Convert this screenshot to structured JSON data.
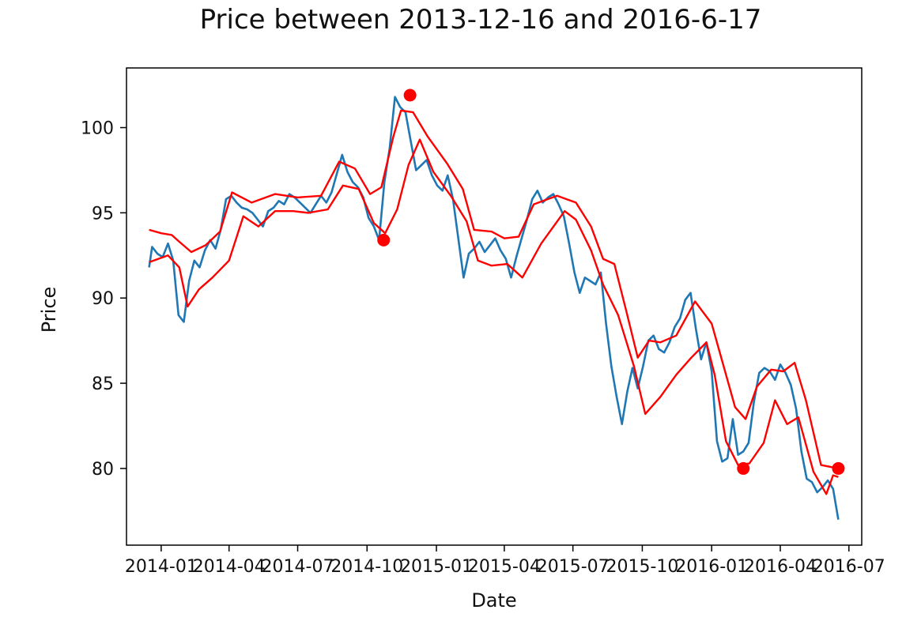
{
  "chart_data": {
    "type": "line",
    "title": "Price between 2013-12-16 and 2016-6-17",
    "xlabel": "Date",
    "ylabel": "Price",
    "xlim": [
      "2013-11-16",
      "2016-07-18"
    ],
    "ylim": [
      75.5,
      103.5
    ],
    "grid": false,
    "x_ticks": [
      "2014-01",
      "2014-04",
      "2014-07",
      "2014-10",
      "2015-01",
      "2015-04",
      "2015-07",
      "2015-10",
      "2016-01",
      "2016-04",
      "2016-07"
    ],
    "y_ticks": [
      80,
      85,
      90,
      95,
      100
    ],
    "colors": {
      "price": "#1f77b4",
      "bands": "#ff0000",
      "markers": "#ff0000"
    },
    "series": [
      {
        "key": "price",
        "x": [
          "2013-12-16",
          "2013-12-20",
          "2013-12-27",
          "2014-01-03",
          "2014-01-10",
          "2014-01-17",
          "2014-01-24",
          "2014-01-31",
          "2014-02-07",
          "2014-02-14",
          "2014-02-21",
          "2014-02-28",
          "2014-03-07",
          "2014-03-14",
          "2014-03-21",
          "2014-03-28",
          "2014-04-04",
          "2014-04-11",
          "2014-04-18",
          "2014-04-25",
          "2014-05-02",
          "2014-05-09",
          "2014-05-16",
          "2014-05-23",
          "2014-05-30",
          "2014-06-06",
          "2014-06-13",
          "2014-06-20",
          "2014-06-27",
          "2014-07-04",
          "2014-07-11",
          "2014-07-18",
          "2014-07-25",
          "2014-08-01",
          "2014-08-08",
          "2014-08-15",
          "2014-08-22",
          "2014-08-29",
          "2014-09-05",
          "2014-09-12",
          "2014-09-19",
          "2014-09-26",
          "2014-10-03",
          "2014-10-10",
          "2014-10-17",
          "2014-10-24",
          "2014-10-31",
          "2014-11-07",
          "2014-11-14",
          "2014-11-21",
          "2014-11-28",
          "2014-12-05",
          "2014-12-12",
          "2014-12-19",
          "2014-12-26",
          "2015-01-02",
          "2015-01-09",
          "2015-01-16",
          "2015-01-23",
          "2015-01-30",
          "2015-02-06",
          "2015-02-13",
          "2015-02-20",
          "2015-02-27",
          "2015-03-06",
          "2015-03-13",
          "2015-03-20",
          "2015-03-27",
          "2015-04-03",
          "2015-04-10",
          "2015-04-17",
          "2015-04-24",
          "2015-05-01",
          "2015-05-08",
          "2015-05-15",
          "2015-05-22",
          "2015-05-29",
          "2015-06-05",
          "2015-06-12",
          "2015-06-19",
          "2015-06-26",
          "2015-07-03",
          "2015-07-10",
          "2015-07-17",
          "2015-07-24",
          "2015-07-31",
          "2015-08-07",
          "2015-08-14",
          "2015-08-21",
          "2015-08-28",
          "2015-09-04",
          "2015-09-11",
          "2015-09-18",
          "2015-09-25",
          "2015-10-02",
          "2015-10-09",
          "2015-10-16",
          "2015-10-23",
          "2015-10-30",
          "2015-11-06",
          "2015-11-13",
          "2015-11-20",
          "2015-11-27",
          "2015-12-04",
          "2015-12-11",
          "2015-12-18",
          "2015-12-25",
          "2016-01-01",
          "2016-01-08",
          "2016-01-15",
          "2016-01-22",
          "2016-01-29",
          "2016-02-05",
          "2016-02-12",
          "2016-02-19",
          "2016-02-26",
          "2016-03-04",
          "2016-03-11",
          "2016-03-18",
          "2016-03-25",
          "2016-04-01",
          "2016-04-08",
          "2016-04-15",
          "2016-04-22",
          "2016-04-29",
          "2016-05-06",
          "2016-05-13",
          "2016-05-20",
          "2016-05-27",
          "2016-06-03",
          "2016-06-10",
          "2016-06-17"
        ],
        "y": [
          91.8,
          93.0,
          92.6,
          92.4,
          93.2,
          92.2,
          89.0,
          88.6,
          91.0,
          92.2,
          91.8,
          92.8,
          93.4,
          92.9,
          94.0,
          95.8,
          96.0,
          95.6,
          95.3,
          95.2,
          95.0,
          94.6,
          94.2,
          95.1,
          95.3,
          95.7,
          95.5,
          96.1,
          95.9,
          95.6,
          95.3,
          95.0,
          95.5,
          96.0,
          95.6,
          96.2,
          97.3,
          98.4,
          97.4,
          96.8,
          96.5,
          95.9,
          94.7,
          94.2,
          93.4,
          96.8,
          98.8,
          101.8,
          101.2,
          100.9,
          99.2,
          97.5,
          97.8,
          98.1,
          97.2,
          96.6,
          96.3,
          97.2,
          95.8,
          93.5,
          91.2,
          92.6,
          92.9,
          93.3,
          92.7,
          93.1,
          93.5,
          92.8,
          92.3,
          91.2,
          92.4,
          93.5,
          94.6,
          95.8,
          96.3,
          95.6,
          95.9,
          96.1,
          95.5,
          94.8,
          93.2,
          91.5,
          90.3,
          91.2,
          91.0,
          90.8,
          91.5,
          88.5,
          86.0,
          84.2,
          82.6,
          84.5,
          85.9,
          84.7,
          86.0,
          87.5,
          87.8,
          87.0,
          86.8,
          87.4,
          88.3,
          88.8,
          89.9,
          90.3,
          88.2,
          86.4,
          87.4,
          85.7,
          81.6,
          80.4,
          80.6,
          82.9,
          80.8,
          81.0,
          81.5,
          83.9,
          85.6,
          85.9,
          85.7,
          85.2,
          86.1,
          85.6,
          84.9,
          83.5,
          81.0,
          79.4,
          79.2,
          78.6,
          78.9,
          79.3,
          78.8,
          77.0
        ]
      },
      {
        "key": "upper-band",
        "x": [
          "2013-12-16",
          "2014-01-01",
          "2014-01-15",
          "2014-01-25",
          "2014-02-10",
          "2014-03-01",
          "2014-03-20",
          "2014-04-05",
          "2014-05-01",
          "2014-06-01",
          "2014-07-01",
          "2014-08-01",
          "2014-08-25",
          "2014-09-15",
          "2014-10-05",
          "2014-10-20",
          "2014-11-05",
          "2014-11-15",
          "2014-12-01",
          "2014-12-20",
          "2015-01-15",
          "2015-02-05",
          "2015-02-20",
          "2015-03-15",
          "2015-04-01",
          "2015-04-20",
          "2015-05-10",
          "2015-06-10",
          "2015-07-05",
          "2015-07-25",
          "2015-08-10",
          "2015-08-25",
          "2015-09-10",
          "2015-09-25",
          "2015-10-10",
          "2015-10-25",
          "2015-11-15",
          "2015-12-10",
          "2016-01-01",
          "2016-01-15",
          "2016-02-01",
          "2016-02-15",
          "2016-03-01",
          "2016-03-20",
          "2016-04-05",
          "2016-04-20",
          "2016-05-05",
          "2016-05-25",
          "2016-06-17"
        ],
        "y": [
          94.0,
          93.8,
          93.7,
          93.3,
          92.7,
          93.1,
          93.9,
          96.2,
          95.6,
          96.1,
          95.9,
          96.0,
          98.0,
          97.6,
          96.1,
          96.5,
          99.5,
          101.0,
          100.9,
          99.5,
          97.9,
          96.4,
          94.0,
          93.9,
          93.5,
          93.6,
          95.5,
          96.0,
          95.6,
          94.2,
          92.3,
          92.0,
          89.2,
          86.5,
          87.5,
          87.4,
          87.8,
          89.8,
          88.5,
          86.3,
          83.6,
          82.9,
          84.8,
          85.8,
          85.7,
          86.2,
          84.0,
          80.2,
          80.0
        ]
      },
      {
        "key": "lower-band",
        "x": [
          "2013-12-16",
          "2014-01-10",
          "2014-01-25",
          "2014-02-05",
          "2014-02-20",
          "2014-03-10",
          "2014-04-01",
          "2014-04-20",
          "2014-05-10",
          "2014-06-01",
          "2014-06-25",
          "2014-07-15",
          "2014-08-10",
          "2014-08-30",
          "2014-09-20",
          "2014-10-10",
          "2014-10-25",
          "2014-11-10",
          "2014-11-25",
          "2014-12-10",
          "2014-12-28",
          "2015-01-20",
          "2015-02-10",
          "2015-02-25",
          "2015-03-15",
          "2015-04-05",
          "2015-04-25",
          "2015-05-20",
          "2015-06-20",
          "2015-07-05",
          "2015-07-25",
          "2015-08-10",
          "2015-08-30",
          "2015-09-20",
          "2015-10-05",
          "2015-10-25",
          "2015-11-15",
          "2015-12-05",
          "2015-12-25",
          "2016-01-05",
          "2016-01-20",
          "2016-02-05",
          "2016-02-20",
          "2016-03-10",
          "2016-03-25",
          "2016-04-10",
          "2016-04-25",
          "2016-05-15",
          "2016-06-01",
          "2016-06-10",
          "2016-06-17"
        ],
        "y": [
          92.1,
          92.5,
          91.8,
          89.5,
          90.5,
          91.2,
          92.2,
          94.8,
          94.2,
          95.1,
          95.1,
          95.0,
          95.2,
          96.6,
          96.4,
          94.4,
          93.8,
          95.2,
          97.8,
          99.3,
          97.4,
          96.0,
          94.5,
          92.2,
          91.9,
          92.0,
          91.2,
          93.2,
          95.1,
          94.6,
          92.8,
          90.8,
          89.0,
          86.0,
          83.2,
          84.2,
          85.5,
          86.5,
          87.4,
          85.5,
          81.6,
          80.2,
          80.3,
          81.5,
          84.0,
          82.6,
          83.0,
          79.8,
          78.5,
          79.6,
          79.5
        ]
      }
    ],
    "markers": {
      "x": [
        "2014-10-23",
        "2014-11-27",
        "2016-02-12",
        "2016-06-17"
      ],
      "y": [
        93.4,
        101.9,
        80.0,
        80.0
      ]
    }
  }
}
